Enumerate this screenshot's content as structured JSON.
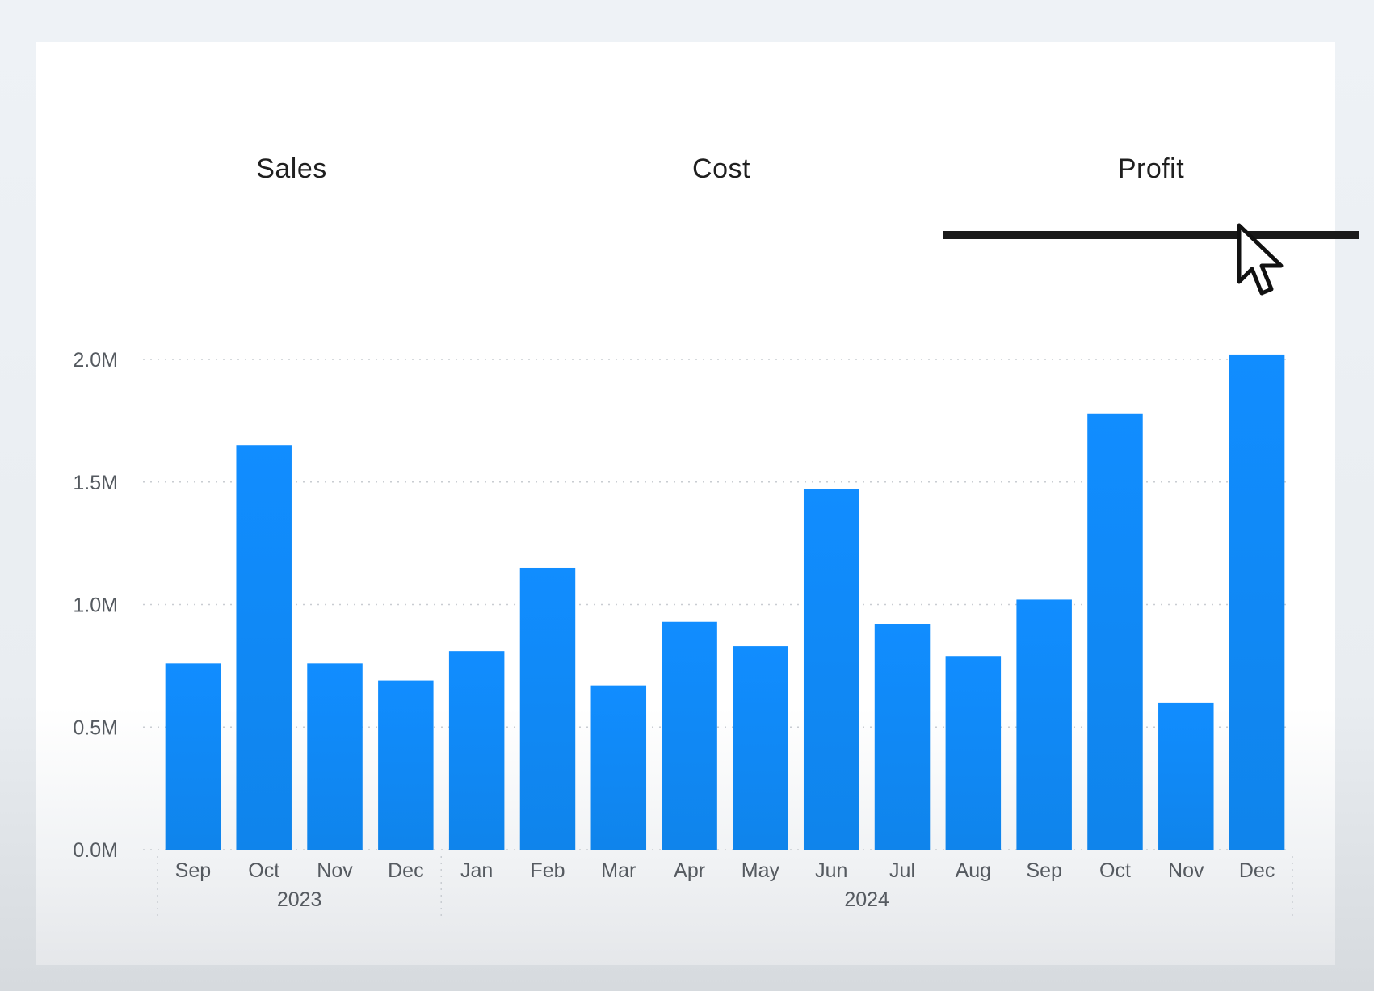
{
  "tabs": [
    {
      "label": "Sales",
      "active": false
    },
    {
      "label": "Cost",
      "active": false
    },
    {
      "label": "Profit",
      "active": true
    }
  ],
  "colors": {
    "bar": "#118DFF",
    "active_underline": "#1a1a1a"
  },
  "chart_data": {
    "type": "bar",
    "title": "",
    "xlabel": "",
    "ylabel": "",
    "ylim": [
      0,
      2000000
    ],
    "yticks": [
      {
        "value": 0,
        "label": "0.0M"
      },
      {
        "value": 500000,
        "label": "0.5M"
      },
      {
        "value": 1000000,
        "label": "1.0M"
      },
      {
        "value": 1500000,
        "label": "1.5M"
      },
      {
        "value": 2000000,
        "label": "2.0M"
      }
    ],
    "grid": true,
    "categories": [
      "Sep",
      "Oct",
      "Nov",
      "Dec",
      "Jan",
      "Feb",
      "Mar",
      "Apr",
      "May",
      "Jun",
      "Jul",
      "Aug",
      "Sep",
      "Oct",
      "Nov",
      "Dec"
    ],
    "values": [
      760000,
      1650000,
      760000,
      690000,
      810000,
      1150000,
      670000,
      930000,
      830000,
      1470000,
      920000,
      790000,
      1020000,
      1780000,
      600000,
      2020000
    ],
    "groups": [
      {
        "label": "2023",
        "count": 4
      },
      {
        "label": "2024",
        "count": 12
      }
    ]
  }
}
